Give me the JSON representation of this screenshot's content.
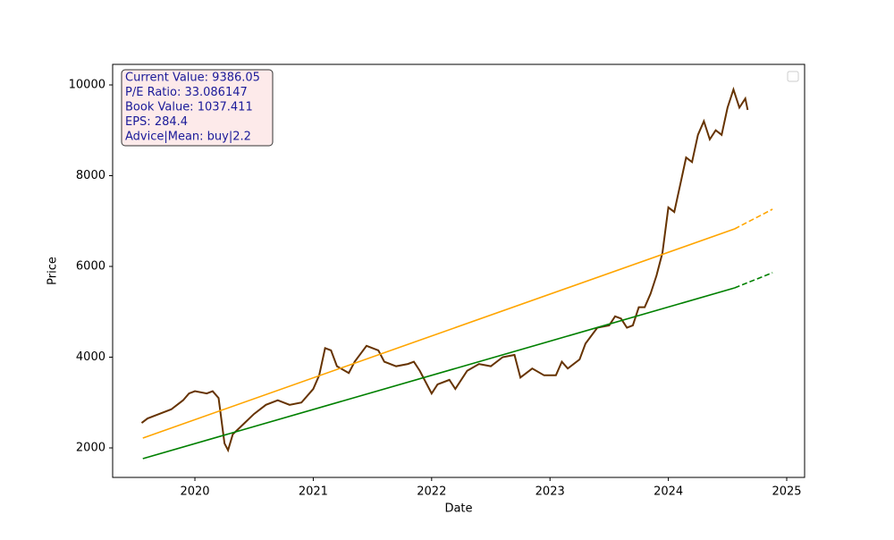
{
  "chart_data": {
    "type": "line",
    "xlabel": "Date",
    "ylabel": "Price",
    "annotation": [
      "Current Value: 9386.05",
      "P/E Ratio: 33.086147",
      "Book Value: 1037.411",
      "EPS: 284.4",
      "Advice|Mean: buy|2.2"
    ],
    "xlim": [
      2019.305,
      2025.151
    ],
    "xticks": [
      2020,
      2021,
      2022,
      2023,
      2024,
      2025
    ],
    "ylim": [
      1350,
      10453
    ],
    "yticks": [
      2000,
      4000,
      6000,
      8000,
      10000
    ],
    "grid": false,
    "legend": "upper right",
    "series": [
      {
        "color": "#663300",
        "dashed": false,
        "x": [
          2019.55,
          2019.6,
          2019.7,
          2019.8,
          2019.9,
          2019.95,
          2020.0,
          2020.1,
          2020.15,
          2020.2,
          2020.25,
          2020.28,
          2020.32,
          2020.4,
          2020.5,
          2020.6,
          2020.7,
          2020.8,
          2020.9,
          2021.0,
          2021.05,
          2021.1,
          2021.15,
          2021.2,
          2021.3,
          2021.35,
          2021.45,
          2021.55,
          2021.6,
          2021.7,
          2021.8,
          2021.85,
          2021.9,
          2022.0,
          2022.05,
          2022.15,
          2022.2,
          2022.3,
          2022.4,
          2022.5,
          2022.6,
          2022.7,
          2022.75,
          2022.85,
          2022.95,
          2023.05,
          2023.1,
          2023.15,
          2023.25,
          2023.3,
          2023.4,
          2023.5,
          2023.55,
          2023.6,
          2023.65,
          2023.7,
          2023.75,
          2023.8,
          2023.85,
          2023.9,
          2023.95,
          2024.0,
          2024.05,
          2024.1,
          2024.15,
          2024.2,
          2024.25,
          2024.3,
          2024.35,
          2024.4,
          2024.45,
          2024.5,
          2024.55,
          2024.6,
          2024.65,
          2024.67
        ],
        "values": [
          2550,
          2650,
          2750,
          2850,
          3050,
          3200,
          3250,
          3200,
          3250,
          3100,
          2100,
          1950,
          2300,
          2500,
          2750,
          2950,
          3050,
          2950,
          3000,
          3300,
          3600,
          4200,
          4150,
          3800,
          3650,
          3900,
          4250,
          4150,
          3900,
          3800,
          3850,
          3900,
          3700,
          3200,
          3400,
          3500,
          3300,
          3700,
          3850,
          3800,
          4000,
          4050,
          3550,
          3750,
          3600,
          3600,
          3900,
          3750,
          3950,
          4300,
          4650,
          4700,
          4900,
          4850,
          4650,
          4700,
          5100,
          5100,
          5400,
          5800,
          6300,
          7300,
          7200,
          7800,
          8400,
          8300,
          8900,
          9200,
          8800,
          9000,
          8900,
          9500,
          9900,
          9500,
          9700,
          9450
        ]
      },
      {
        "color": "#ffa500",
        "dashed": false,
        "x": [
          2019.56,
          2024.56
        ],
        "values": [
          2217,
          6828
        ]
      },
      {
        "color": "#ffa500",
        "dashed": true,
        "x": [
          2024.56,
          2024.88
        ],
        "values": [
          6828,
          7261
        ]
      },
      {
        "color": "#008000",
        "dashed": false,
        "x": [
          2019.56,
          2024.56
        ],
        "values": [
          1764,
          5527
        ]
      },
      {
        "color": "#008000",
        "dashed": true,
        "x": [
          2024.56,
          2024.88
        ],
        "values": [
          5527,
          5862
        ]
      }
    ]
  }
}
